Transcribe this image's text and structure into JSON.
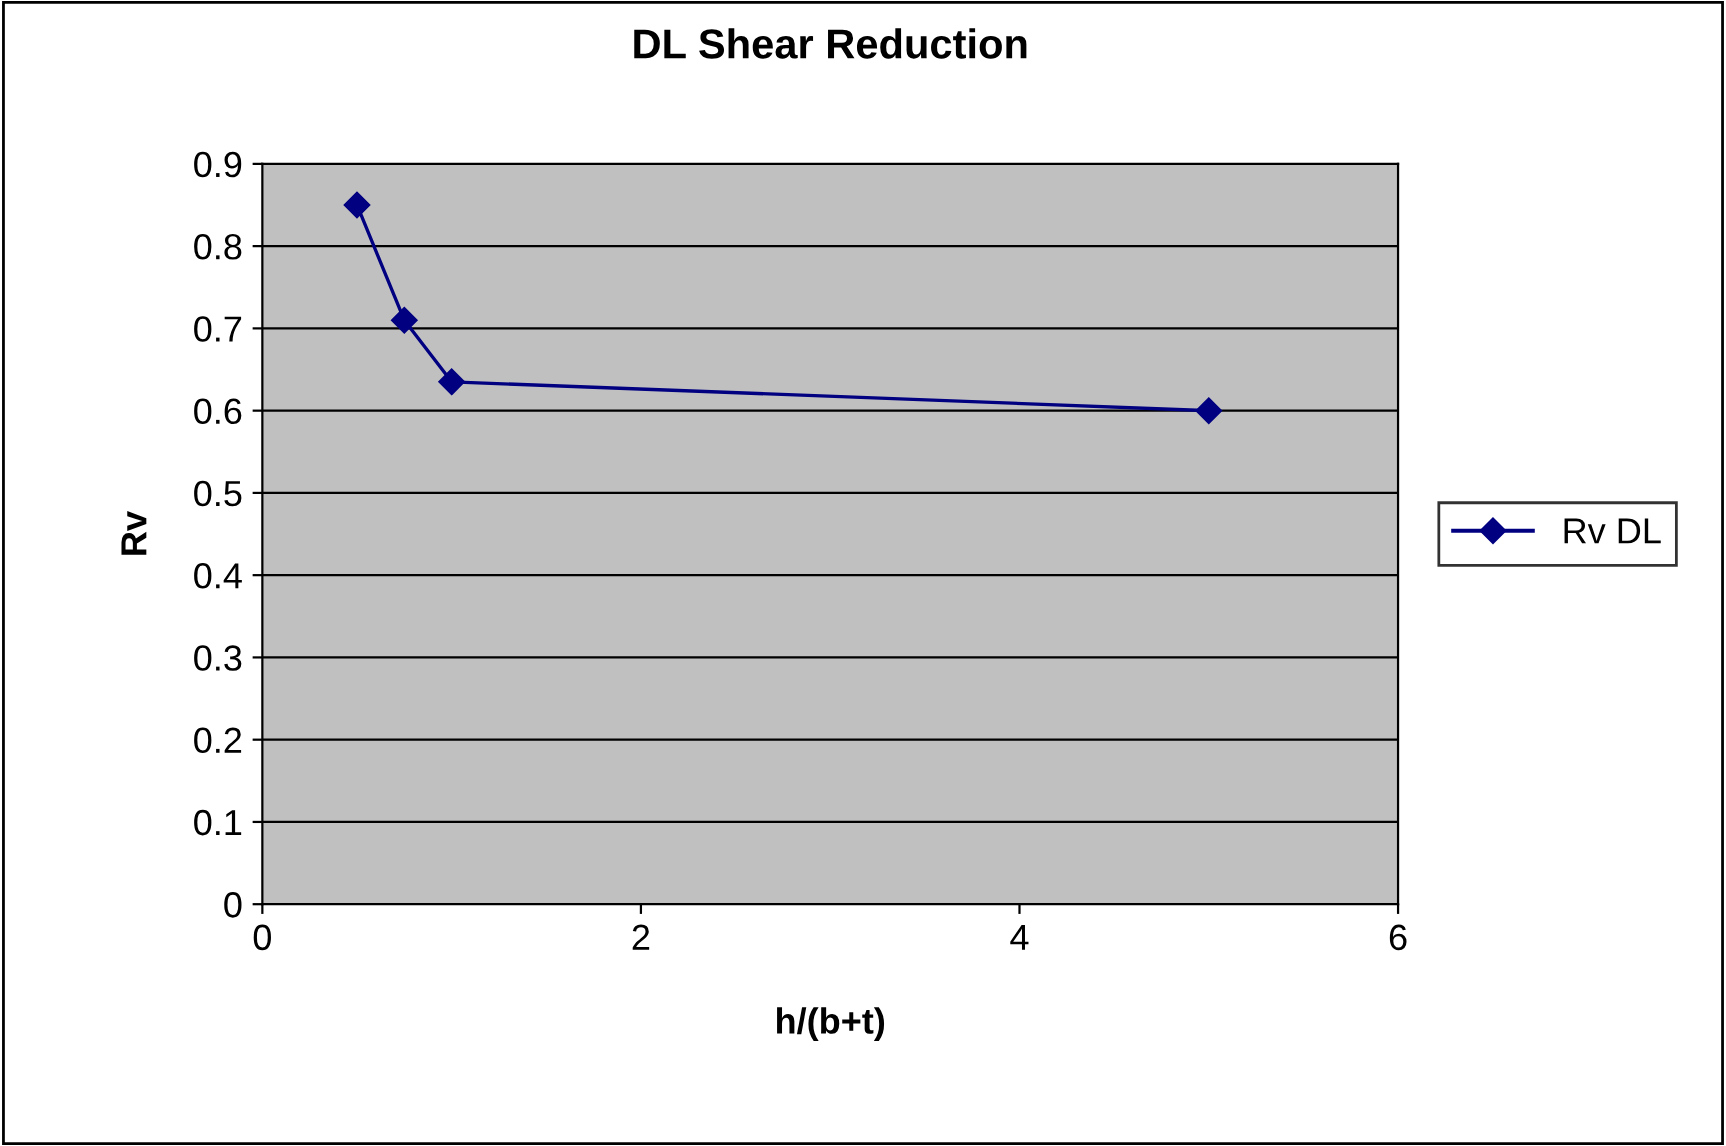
{
  "chart_data": {
    "type": "line",
    "title": "DL Shear Reduction",
    "xlabel": "h/(b+t)",
    "ylabel": "Rv",
    "x": [
      0.5,
      0.75,
      1,
      5
    ],
    "series": [
      {
        "name": "Rv DL",
        "color": "#000080",
        "values": [
          0.85,
          0.71,
          0.635,
          0.6
        ]
      }
    ],
    "xlim": [
      0,
      6
    ],
    "xticks": [
      0,
      2,
      4,
      6
    ],
    "ylim": [
      0,
      0.9
    ],
    "yticks": [
      0,
      0.1,
      0.2,
      0.3,
      0.4,
      0.5,
      0.6,
      0.7,
      0.8,
      0.9
    ],
    "grid": "y",
    "legend": "right",
    "marker": "diamond",
    "line_style": "solid"
  }
}
